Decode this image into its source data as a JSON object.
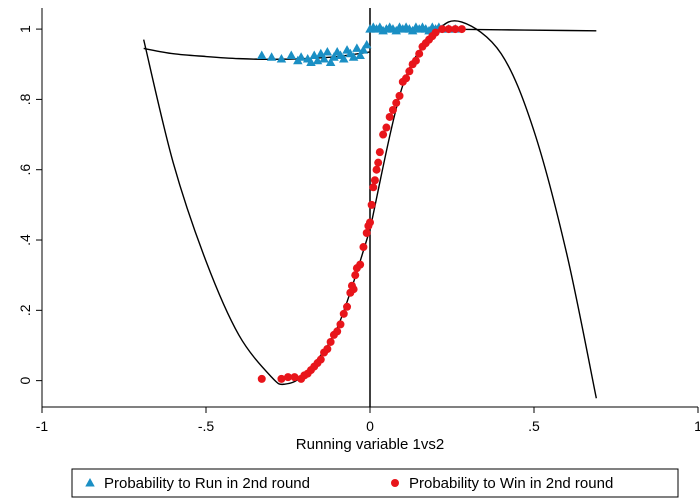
{
  "chart_data": {
    "type": "scatter",
    "title": "",
    "xlabel": "Running variable 1vs2",
    "ylabel": "",
    "xlim": [
      -1,
      1
    ],
    "ylim": [
      -0.075,
      1.06
    ],
    "grid": false,
    "legend_position": "bottom",
    "x_ticks": [
      {
        "value": -1,
        "label": "-1"
      },
      {
        "value": -0.5,
        "label": "-.5"
      },
      {
        "value": 0,
        "label": "0"
      },
      {
        "value": 0.5,
        "label": ".5"
      },
      {
        "value": 1,
        "label": "1"
      }
    ],
    "y_ticks": [
      {
        "value": 0,
        "label": "0"
      },
      {
        "value": 0.2,
        "label": ".2"
      },
      {
        "value": 0.4,
        "label": ".4"
      },
      {
        "value": 0.6,
        "label": ".6"
      },
      {
        "value": 0.8,
        "label": ".8"
      },
      {
        "value": 1,
        "label": "1"
      }
    ],
    "cutoff_line_x": 0,
    "series": [
      {
        "name": "Probability to Run in 2nd round",
        "marker": "triangle",
        "color": "#1a8fc4",
        "points": [
          [
            -0.33,
            0.925
          ],
          [
            -0.3,
            0.92
          ],
          [
            -0.27,
            0.915
          ],
          [
            -0.24,
            0.925
          ],
          [
            -0.22,
            0.91
          ],
          [
            -0.21,
            0.92
          ],
          [
            -0.19,
            0.915
          ],
          [
            -0.18,
            0.905
          ],
          [
            -0.17,
            0.925
          ],
          [
            -0.16,
            0.91
          ],
          [
            -0.15,
            0.93
          ],
          [
            -0.14,
            0.915
          ],
          [
            -0.13,
            0.935
          ],
          [
            -0.12,
            0.905
          ],
          [
            -0.11,
            0.92
          ],
          [
            -0.1,
            0.935
          ],
          [
            -0.09,
            0.925
          ],
          [
            -0.08,
            0.915
          ],
          [
            -0.07,
            0.94
          ],
          [
            -0.06,
            0.93
          ],
          [
            -0.05,
            0.92
          ],
          [
            -0.04,
            0.945
          ],
          [
            -0.03,
            0.925
          ],
          [
            -0.02,
            0.94
          ],
          [
            -0.01,
            0.955
          ],
          [
            0.0,
            1.0
          ],
          [
            0.01,
            1.005
          ],
          [
            0.02,
            1.0
          ],
          [
            0.03,
            1.005
          ],
          [
            0.04,
            0.995
          ],
          [
            0.05,
            1.0
          ],
          [
            0.06,
            1.005
          ],
          [
            0.07,
            1.0
          ],
          [
            0.08,
            0.995
          ],
          [
            0.09,
            1.005
          ],
          [
            0.1,
            1.0
          ],
          [
            0.11,
            1.005
          ],
          [
            0.12,
            1.0
          ],
          [
            0.13,
            0.995
          ],
          [
            0.14,
            1.005
          ],
          [
            0.15,
            1.0
          ],
          [
            0.16,
            1.005
          ],
          [
            0.17,
            1.0
          ],
          [
            0.18,
            0.995
          ],
          [
            0.19,
            1.005
          ],
          [
            0.2,
            1.0
          ],
          [
            0.21,
            1.005
          ],
          [
            0.22,
            1.0
          ],
          [
            0.24,
            1.0
          ],
          [
            0.26,
            1.0
          ]
        ],
        "fit": {
          "left": {
            "x_range": [
              -0.69,
              0
            ],
            "points": [
              [
                -0.69,
                0.945
              ],
              [
                -0.6,
                0.93
              ],
              [
                -0.5,
                0.922
              ],
              [
                -0.4,
                0.916
              ],
              [
                -0.3,
                0.914
              ],
              [
                -0.2,
                0.916
              ],
              [
                -0.1,
                0.922
              ],
              [
                0.0,
                0.935
              ]
            ]
          },
          "right": {
            "x_range": [
              0,
              0.69
            ],
            "points": [
              [
                0.0,
                1.0
              ],
              [
                0.2,
                1.0
              ],
              [
                0.4,
                0.998
              ],
              [
                0.6,
                0.996
              ],
              [
                0.69,
                0.995
              ]
            ]
          }
        }
      },
      {
        "name": "Probability to Win in 2nd round",
        "marker": "circle",
        "color": "#e8151b",
        "points": [
          [
            -0.33,
            0.005
          ],
          [
            -0.27,
            0.005
          ],
          [
            -0.25,
            0.01
          ],
          [
            -0.23,
            0.01
          ],
          [
            -0.21,
            0.005
          ],
          [
            -0.2,
            0.015
          ],
          [
            -0.19,
            0.02
          ],
          [
            -0.18,
            0.03
          ],
          [
            -0.17,
            0.04
          ],
          [
            -0.16,
            0.05
          ],
          [
            -0.15,
            0.06
          ],
          [
            -0.14,
            0.08
          ],
          [
            -0.13,
            0.09
          ],
          [
            -0.12,
            0.11
          ],
          [
            -0.11,
            0.13
          ],
          [
            -0.1,
            0.14
          ],
          [
            -0.09,
            0.16
          ],
          [
            -0.08,
            0.19
          ],
          [
            -0.07,
            0.21
          ],
          [
            -0.06,
            0.25
          ],
          [
            -0.055,
            0.27
          ],
          [
            -0.05,
            0.26
          ],
          [
            -0.045,
            0.3
          ],
          [
            -0.04,
            0.32
          ],
          [
            -0.03,
            0.33
          ],
          [
            -0.02,
            0.38
          ],
          [
            -0.01,
            0.42
          ],
          [
            -0.005,
            0.44
          ],
          [
            0.0,
            0.45
          ],
          [
            0.005,
            0.5
          ],
          [
            0.01,
            0.55
          ],
          [
            0.015,
            0.57
          ],
          [
            0.02,
            0.6
          ],
          [
            0.025,
            0.62
          ],
          [
            0.03,
            0.65
          ],
          [
            0.04,
            0.7
          ],
          [
            0.05,
            0.72
          ],
          [
            0.06,
            0.75
          ],
          [
            0.07,
            0.77
          ],
          [
            0.08,
            0.79
          ],
          [
            0.09,
            0.81
          ],
          [
            0.1,
            0.85
          ],
          [
            0.11,
            0.86
          ],
          [
            0.12,
            0.88
          ],
          [
            0.13,
            0.9
          ],
          [
            0.14,
            0.91
          ],
          [
            0.15,
            0.93
          ],
          [
            0.16,
            0.95
          ],
          [
            0.17,
            0.96
          ],
          [
            0.18,
            0.97
          ],
          [
            0.19,
            0.98
          ],
          [
            0.2,
            0.99
          ],
          [
            0.22,
            1.0
          ],
          [
            0.24,
            1.0
          ],
          [
            0.26,
            1.0
          ],
          [
            0.28,
            1.0
          ]
        ],
        "fit": {
          "left": {
            "x_range": [
              -0.69,
              0
            ],
            "points": [
              [
                -0.69,
                0.97
              ],
              [
                -0.6,
                0.62
              ],
              [
                -0.5,
                0.34
              ],
              [
                -0.4,
                0.13
              ],
              [
                -0.3,
                0.01
              ],
              [
                -0.26,
                -0.01
              ],
              [
                -0.2,
                0.02
              ],
              [
                -0.1,
                0.15
              ],
              [
                0.0,
                0.43
              ]
            ]
          },
          "right": {
            "x_range": [
              0,
              0.69
            ],
            "points": [
              [
                0.0,
                0.43
              ],
              [
                0.1,
                0.84
              ],
              [
                0.2,
                0.99
              ],
              [
                0.28,
                1.02
              ],
              [
                0.4,
                0.93
              ],
              [
                0.5,
                0.71
              ],
              [
                0.6,
                0.36
              ],
              [
                0.69,
                -0.05
              ]
            ]
          }
        }
      }
    ]
  }
}
